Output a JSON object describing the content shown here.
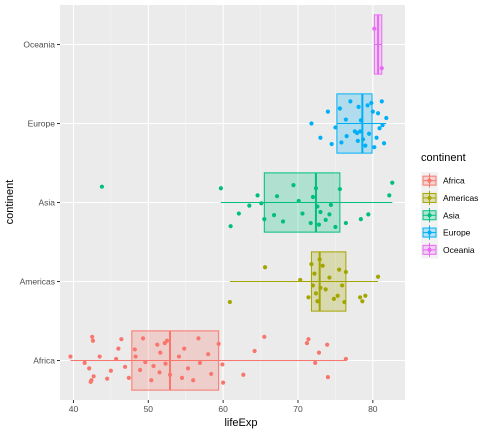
{
  "chart_data": {
    "type": "boxplot",
    "orientation": "horizontal",
    "title": "",
    "xlabel": "lifeExp",
    "ylabel": "continent",
    "xlim": [
      38.2,
      84.3
    ],
    "xticks": [
      40,
      50,
      60,
      70,
      80
    ],
    "categories": [
      "Africa",
      "Americas",
      "Asia",
      "Europe",
      "Oceania"
    ],
    "grid": true,
    "legend": {
      "title": "continent",
      "position": "right"
    },
    "series": [
      {
        "name": "Africa",
        "color": "#F8766D",
        "box": {
          "min": 39.6,
          "q1": 47.8,
          "median": 52.9,
          "q3": 59.4,
          "max": 76.4
        },
        "points": [
          39.6,
          41.5,
          42.4,
          42.1,
          42.6,
          42.5,
          42.7,
          43.5,
          44.5,
          45.0,
          45.7,
          46.4,
          46.9,
          47.4,
          48.2,
          48.3,
          48.9,
          49.3,
          49.6,
          50.4,
          50.7,
          51.2,
          51.5,
          51.6,
          52.3,
          52.5,
          52.9,
          54.1,
          54.5,
          54.8,
          55.3,
          56.0,
          56.7,
          56.9,
          58.0,
          58.4,
          59.4,
          59.9,
          60.0,
          62.7,
          64.2,
          65.5,
          71.2,
          71.4,
          72.3,
          72.8,
          73.9,
          74.0,
          76.4,
          42.3,
          46.0,
          52.2
        ],
        "jitter": [
          -0.05,
          0.03,
          0.25,
          0.1,
          -0.25,
          -0.3,
          0.2,
          -0.05,
          0.23,
          0.13,
          -0.02,
          -0.27,
          0.08,
          0.22,
          -0.14,
          -0.05,
          0.12,
          -0.28,
          0.02,
          0.25,
          0.07,
          -0.2,
          0.15,
          -0.1,
          0.04,
          -0.25,
          0.18,
          -0.05,
          0.22,
          -0.15,
          0.1,
          0.25,
          -0.28,
          0.03,
          -0.08,
          0.17,
          -0.21,
          0.05,
          0.28,
          0.18,
          -0.12,
          -0.3,
          -0.22,
          -0.27,
          0.03,
          -0.1,
          -0.2,
          0.21,
          -0.02,
          0.27,
          -0.15,
          -0.22
        ]
      },
      {
        "name": "Americas",
        "color": "#A3A500",
        "box": {
          "min": 60.9,
          "q1": 71.8,
          "median": 72.9,
          "q3": 76.4,
          "max": 80.7
        },
        "points": [
          60.9,
          65.6,
          70.3,
          71.4,
          71.8,
          72.0,
          72.2,
          72.4,
          72.6,
          72.9,
          73.0,
          73.3,
          73.7,
          74.2,
          74.8,
          75.3,
          75.5,
          75.9,
          76.2,
          76.4,
          78.3,
          78.6,
          79.0,
          80.7
        ],
        "jitter": [
          0.26,
          -0.18,
          -0.02,
          0.2,
          -0.22,
          0.05,
          -0.1,
          0.15,
          0.25,
          -0.28,
          0.08,
          -0.2,
          0.1,
          -0.05,
          0.22,
          0.18,
          -0.15,
          0.05,
          0.26,
          -0.12,
          0.2,
          0.25,
          0.18,
          -0.06
        ]
      },
      {
        "name": "Asia",
        "color": "#00BF7D",
        "box": {
          "min": 59.7,
          "q1": 65.5,
          "median": 72.4,
          "q3": 75.6,
          "max": 82.6
        },
        "points": [
          43.8,
          59.7,
          61.0,
          62.1,
          63.5,
          64.6,
          65.1,
          65.5,
          66.8,
          67.2,
          68.0,
          69.4,
          70.1,
          70.6,
          71.7,
          72.0,
          72.4,
          72.6,
          72.8,
          73.0,
          73.7,
          74.2,
          74.4,
          75.0,
          75.6,
          76.4,
          78.4,
          79.4,
          82.2,
          82.6
        ],
        "jitter": [
          -0.2,
          -0.18,
          0.3,
          0.14,
          0.04,
          -0.09,
          0.01,
          0.21,
          0.16,
          -0.08,
          0.24,
          -0.22,
          -0.02,
          0.14,
          0.26,
          -0.07,
          -0.18,
          0.05,
          0.28,
          0.12,
          0.22,
          0.15,
          0.03,
          0.31,
          -0.17,
          0.26,
          0.21,
          0.15,
          -0.09,
          -0.25
        ]
      },
      {
        "name": "Europe",
        "color": "#00B0F6",
        "box": {
          "min": 75.2,
          "q1": 75.2,
          "median": 78.6,
          "q3": 79.9,
          "max": 81.8
        },
        "points": [
          71.8,
          73.0,
          74.0,
          74.5,
          75.0,
          75.6,
          75.8,
          76.4,
          76.5,
          77.0,
          77.6,
          78.0,
          78.1,
          78.3,
          78.4,
          78.7,
          79.0,
          79.3,
          79.5,
          79.8,
          80.2,
          80.5,
          80.7,
          80.9,
          81.2,
          81.3,
          81.5,
          81.8,
          80.0,
          77.9
        ],
        "jitter": [
          0.0,
          0.18,
          -0.15,
          0.26,
          0.05,
          -0.19,
          0.24,
          -0.05,
          0.16,
          -0.28,
          0.1,
          0.22,
          -0.21,
          0.1,
          -0.04,
          0.2,
          0.28,
          -0.23,
          0.13,
          -0.26,
          0.3,
          0.18,
          -0.13,
          0.06,
          -0.28,
          0.02,
          0.25,
          -0.07,
          -0.15,
          0.12
        ]
      },
      {
        "name": "Oceania",
        "color": "#E76BF3",
        "box": {
          "min": 80.2,
          "q1": 80.2,
          "median": 80.7,
          "q3": 81.2,
          "max": 81.2
        },
        "points": [
          80.2,
          81.2
        ],
        "jitter": [
          -0.2,
          0.3
        ]
      }
    ]
  }
}
